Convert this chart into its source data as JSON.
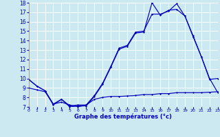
{
  "xlabel": "Graphe des températures (°c)",
  "bg_color": "#cce8f0",
  "line_color": "#0000bb",
  "hours": [
    0,
    1,
    2,
    3,
    4,
    5,
    6,
    7,
    8,
    9,
    10,
    11,
    12,
    13,
    14,
    15,
    16,
    17,
    18,
    19,
    20,
    21,
    22,
    23
  ],
  "line1": [
    9.9,
    9.2,
    8.7,
    7.2,
    7.8,
    7.0,
    7.1,
    7.1,
    8.1,
    9.4,
    11.2,
    13.1,
    13.4,
    14.8,
    14.9,
    18.0,
    16.7,
    17.2,
    17.3,
    16.6,
    14.4,
    12.3,
    9.9,
    10.0
  ],
  "line2": [
    9.9,
    9.2,
    8.7,
    7.3,
    7.8,
    7.1,
    7.2,
    7.2,
    8.2,
    9.5,
    11.3,
    13.2,
    13.5,
    14.9,
    15.0,
    16.8,
    16.8,
    17.1,
    17.9,
    16.6,
    14.5,
    12.3,
    10.0,
    8.5
  ],
  "line3": [
    9.0,
    8.8,
    8.6,
    7.3,
    7.5,
    7.2,
    7.0,
    7.2,
    7.8,
    8.0,
    8.1,
    8.1,
    8.15,
    8.2,
    8.3,
    8.3,
    8.4,
    8.4,
    8.5,
    8.5,
    8.5,
    8.5,
    8.55,
    8.6
  ],
  "ylim_min": 7,
  "ylim_max": 18,
  "xlim_min": 0,
  "xlim_max": 23
}
